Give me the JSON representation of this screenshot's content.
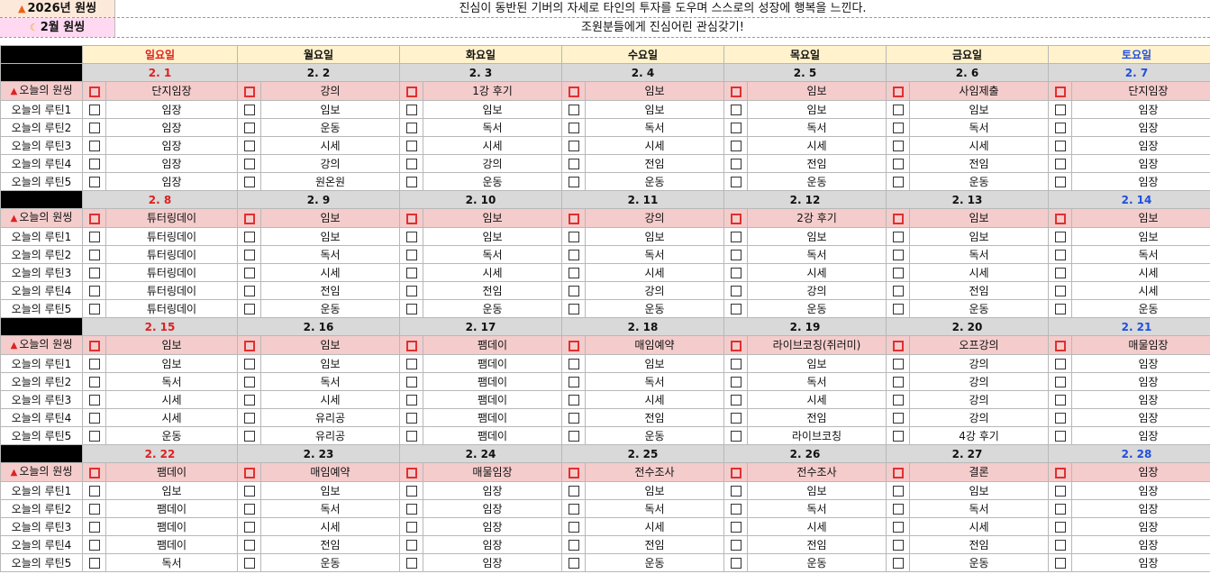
{
  "header": {
    "year_label": "2026년 원씽",
    "year_icon": "fire-icon",
    "year_text": "진심이 동반된 기버의 자세로 타인의 투자를 도우며 스스로의 성장에 행복을 느낀다.",
    "month_label": "2월 원씽",
    "month_icon": "moon-icon",
    "month_text": "조원분들에게 진심어린 관심갖기!"
  },
  "colors": {
    "sunday": "#e02020",
    "saturday": "#1f4fe0",
    "goal_row": "#f4cccc",
    "day_header": "#fff2cc",
    "date_row": "#d9d9d9"
  },
  "days": [
    "일요일",
    "월요일",
    "화요일",
    "수요일",
    "목요일",
    "금요일",
    "토요일"
  ],
  "row_labels": {
    "goal": "오늘의 원씽",
    "goal_icon": "pin-icon",
    "routines": [
      "오늘의 루틴1",
      "오늘의 루틴2",
      "오늘의 루틴3",
      "오늘의 루틴4",
      "오늘의 루틴5"
    ]
  },
  "weeks": [
    {
      "dates": [
        "2. 1",
        "2. 2",
        "2. 3",
        "2. 4",
        "2. 5",
        "2. 6",
        "2. 7"
      ],
      "goal": [
        "단지임장",
        "강의",
        "1강 후기",
        "임보",
        "임보",
        "사임제출",
        "단지임장"
      ],
      "routines": [
        [
          "임장",
          "임보",
          "임보",
          "임보",
          "임보",
          "임보",
          "임장"
        ],
        [
          "임장",
          "운동",
          "독서",
          "독서",
          "독서",
          "독서",
          "임장"
        ],
        [
          "임장",
          "시세",
          "시세",
          "시세",
          "시세",
          "시세",
          "임장"
        ],
        [
          "임장",
          "강의",
          "강의",
          "전임",
          "전임",
          "전임",
          "임장"
        ],
        [
          "임장",
          "원온원",
          "운동",
          "운동",
          "운동",
          "운동",
          "임장"
        ]
      ]
    },
    {
      "dates": [
        "2. 8",
        "2. 9",
        "2. 10",
        "2. 11",
        "2. 12",
        "2. 13",
        "2. 14"
      ],
      "goal": [
        "튜터링데이",
        "임보",
        "임보",
        "강의",
        "2강 후기",
        "임보",
        "임보"
      ],
      "routines": [
        [
          "튜터링데이",
          "임보",
          "임보",
          "임보",
          "임보",
          "임보",
          "임보"
        ],
        [
          "튜터링데이",
          "독서",
          "독서",
          "독서",
          "독서",
          "독서",
          "독서"
        ],
        [
          "튜터링데이",
          "시세",
          "시세",
          "시세",
          "시세",
          "시세",
          "시세"
        ],
        [
          "튜터링데이",
          "전임",
          "전임",
          "강의",
          "강의",
          "전임",
          "시세"
        ],
        [
          "튜터링데이",
          "운동",
          "운동",
          "운동",
          "운동",
          "운동",
          "운동"
        ]
      ]
    },
    {
      "dates": [
        "2. 15",
        "2. 16",
        "2. 17",
        "2. 18",
        "2. 19",
        "2. 20",
        "2. 21"
      ],
      "goal": [
        "임보",
        "임보",
        "팸데이",
        "매임예약",
        "라이브코칭(쥐러미)",
        "오프강의",
        "매물임장"
      ],
      "routines": [
        [
          "임보",
          "임보",
          "팸데이",
          "임보",
          "임보",
          "강의",
          "임장"
        ],
        [
          "독서",
          "독서",
          "팸데이",
          "독서",
          "독서",
          "강의",
          "임장"
        ],
        [
          "시세",
          "시세",
          "팸데이",
          "시세",
          "시세",
          "강의",
          "임장"
        ],
        [
          "시세",
          "유리공",
          "팸데이",
          "전임",
          "전임",
          "강의",
          "임장"
        ],
        [
          "운동",
          "유리공",
          "팸데이",
          "운동",
          "라이브코칭",
          "4강 후기",
          "임장"
        ]
      ]
    },
    {
      "dates": [
        "2. 22",
        "2. 23",
        "2. 24",
        "2. 25",
        "2. 26",
        "2. 27",
        "2. 28"
      ],
      "goal": [
        "팸데이",
        "매임예약",
        "매물임장",
        "전수조사",
        "전수조사",
        "결론",
        "임장"
      ],
      "routines": [
        [
          "임보",
          "임보",
          "임장",
          "임보",
          "임보",
          "임보",
          "임장"
        ],
        [
          "팸데이",
          "독서",
          "임장",
          "독서",
          "독서",
          "독서",
          "임장"
        ],
        [
          "팸데이",
          "시세",
          "임장",
          "시세",
          "시세",
          "시세",
          "임장"
        ],
        [
          "팸데이",
          "전임",
          "임장",
          "전임",
          "전임",
          "전임",
          "임장"
        ],
        [
          "독서",
          "운동",
          "임장",
          "운동",
          "운동",
          "운동",
          "임장"
        ]
      ]
    }
  ]
}
